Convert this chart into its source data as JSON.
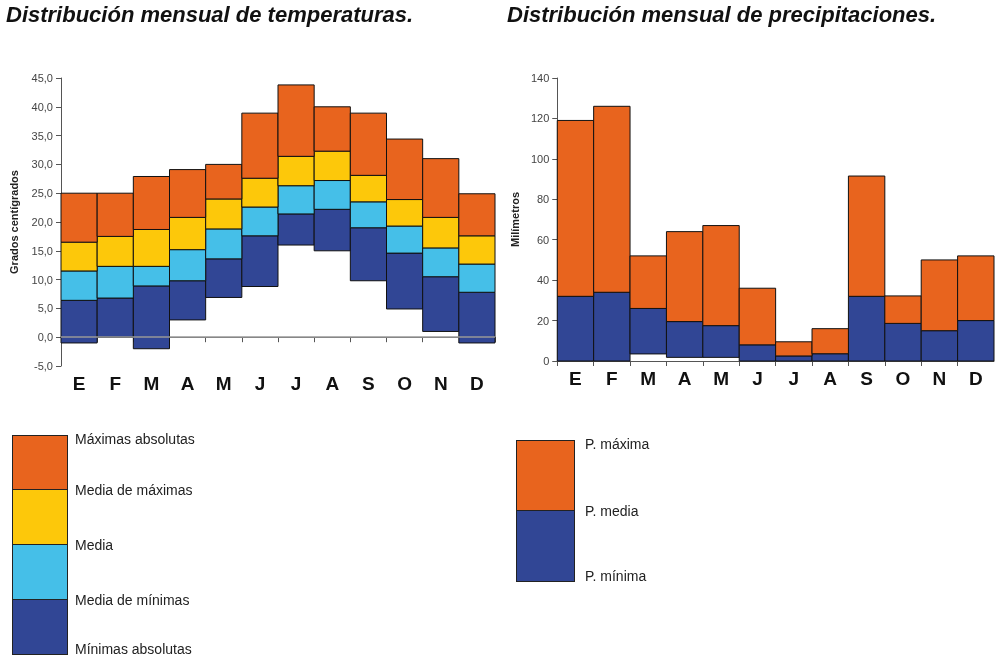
{
  "chart_data": [
    {
      "type": "bar",
      "title": "Distribución mensual de temperaturas.",
      "ylabel": "Grados centígrados",
      "categories": [
        "E",
        "F",
        "M",
        "A",
        "M",
        "J",
        "J",
        "A",
        "S",
        "O",
        "N",
        "D"
      ],
      "series": [
        {
          "color": "#314695",
          "base": [
            -1.0,
            0.0,
            -2.0,
            3.0,
            6.9,
            8.8,
            16.0,
            15.0,
            9.8,
            4.9,
            1.0,
            -1.0
          ],
          "values": [
            7.4,
            6.8,
            10.9,
            6.8,
            6.7,
            8.8,
            5.4,
            7.2,
            9.2,
            9.7,
            9.5,
            8.8
          ]
        },
        {
          "color": "#45bfe8",
          "base": [
            6.4,
            6.8,
            8.9,
            9.8,
            13.6,
            17.6,
            21.4,
            22.2,
            19.0,
            14.6,
            10.5,
            7.8
          ],
          "values": [
            5.1,
            5.5,
            3.4,
            5.4,
            5.2,
            5.0,
            4.9,
            5.0,
            4.5,
            4.7,
            5.0,
            4.9
          ]
        },
        {
          "color": "#fdc80a",
          "base": [
            11.5,
            12.3,
            12.3,
            15.2,
            18.8,
            22.6,
            26.3,
            27.2,
            23.5,
            19.3,
            15.5,
            12.7
          ],
          "values": [
            5.0,
            5.2,
            6.4,
            5.6,
            5.2,
            5.0,
            5.1,
            5.1,
            4.6,
            4.6,
            5.3,
            4.9
          ]
        },
        {
          "color": "#e8641e",
          "base": [
            16.5,
            17.5,
            18.7,
            20.8,
            24.0,
            27.6,
            31.4,
            32.3,
            28.1,
            23.9,
            20.8,
            17.6
          ],
          "values": [
            8.5,
            7.5,
            9.2,
            8.3,
            6.0,
            11.3,
            12.4,
            7.7,
            10.8,
            10.5,
            10.2,
            7.3
          ]
        }
      ],
      "ylim": [
        -5,
        45
      ],
      "yticks": [
        {
          "value": -5,
          "label": "-5,0"
        },
        {
          "value": 0,
          "label": "0,0"
        },
        {
          "value": 5,
          "label": "5,0"
        },
        {
          "value": 10,
          "label": "10,0"
        },
        {
          "value": 15,
          "label": "15,0"
        },
        {
          "value": 20,
          "label": "20,0"
        },
        {
          "value": 25,
          "label": "25,0"
        },
        {
          "value": 30,
          "label": "30,0"
        },
        {
          "value": 35,
          "label": "35,0"
        },
        {
          "value": 40,
          "label": "40,0"
        },
        {
          "value": 45,
          "label": "45,0"
        }
      ],
      "ref_lines": [
        {
          "axis": "y",
          "value": 0,
          "color": "#999999"
        }
      ],
      "annotations": [
        "Máximas absolutas",
        "Media de máximas",
        "Media",
        "Media de mínimas",
        "Mínimas absolutas"
      ]
    },
    {
      "type": "bar",
      "title": "Distribución mensual de precipitaciones.",
      "ylabel": "Milímetros",
      "categories": [
        "E",
        "F",
        "M",
        "A",
        "M",
        "J",
        "J",
        "A",
        "S",
        "O",
        "N",
        "D"
      ],
      "series": [
        {
          "color": "#314695",
          "base": [
            0,
            0,
            3.5,
            1.8,
            1.8,
            0,
            0,
            0,
            0,
            0,
            0,
            0
          ],
          "values": [
            32,
            34,
            22.5,
            17.7,
            15.7,
            8,
            2.5,
            3.6,
            32,
            18.6,
            15,
            20
          ]
        },
        {
          "color": "#e8641e",
          "base": [
            32,
            34,
            26,
            19.5,
            17.5,
            8,
            2.5,
            3.6,
            32,
            18.6,
            15,
            20
          ],
          "values": [
            87,
            92,
            26,
            44.5,
            49.5,
            28,
            7,
            12.4,
            59.5,
            13.6,
            35,
            32
          ]
        }
      ],
      "ylim": [
        0,
        140
      ],
      "yticks": [
        0,
        20,
        40,
        60,
        80,
        100,
        120,
        140
      ],
      "annotations": [
        "P. máxima",
        "P. media",
        "P. mínima"
      ]
    }
  ]
}
